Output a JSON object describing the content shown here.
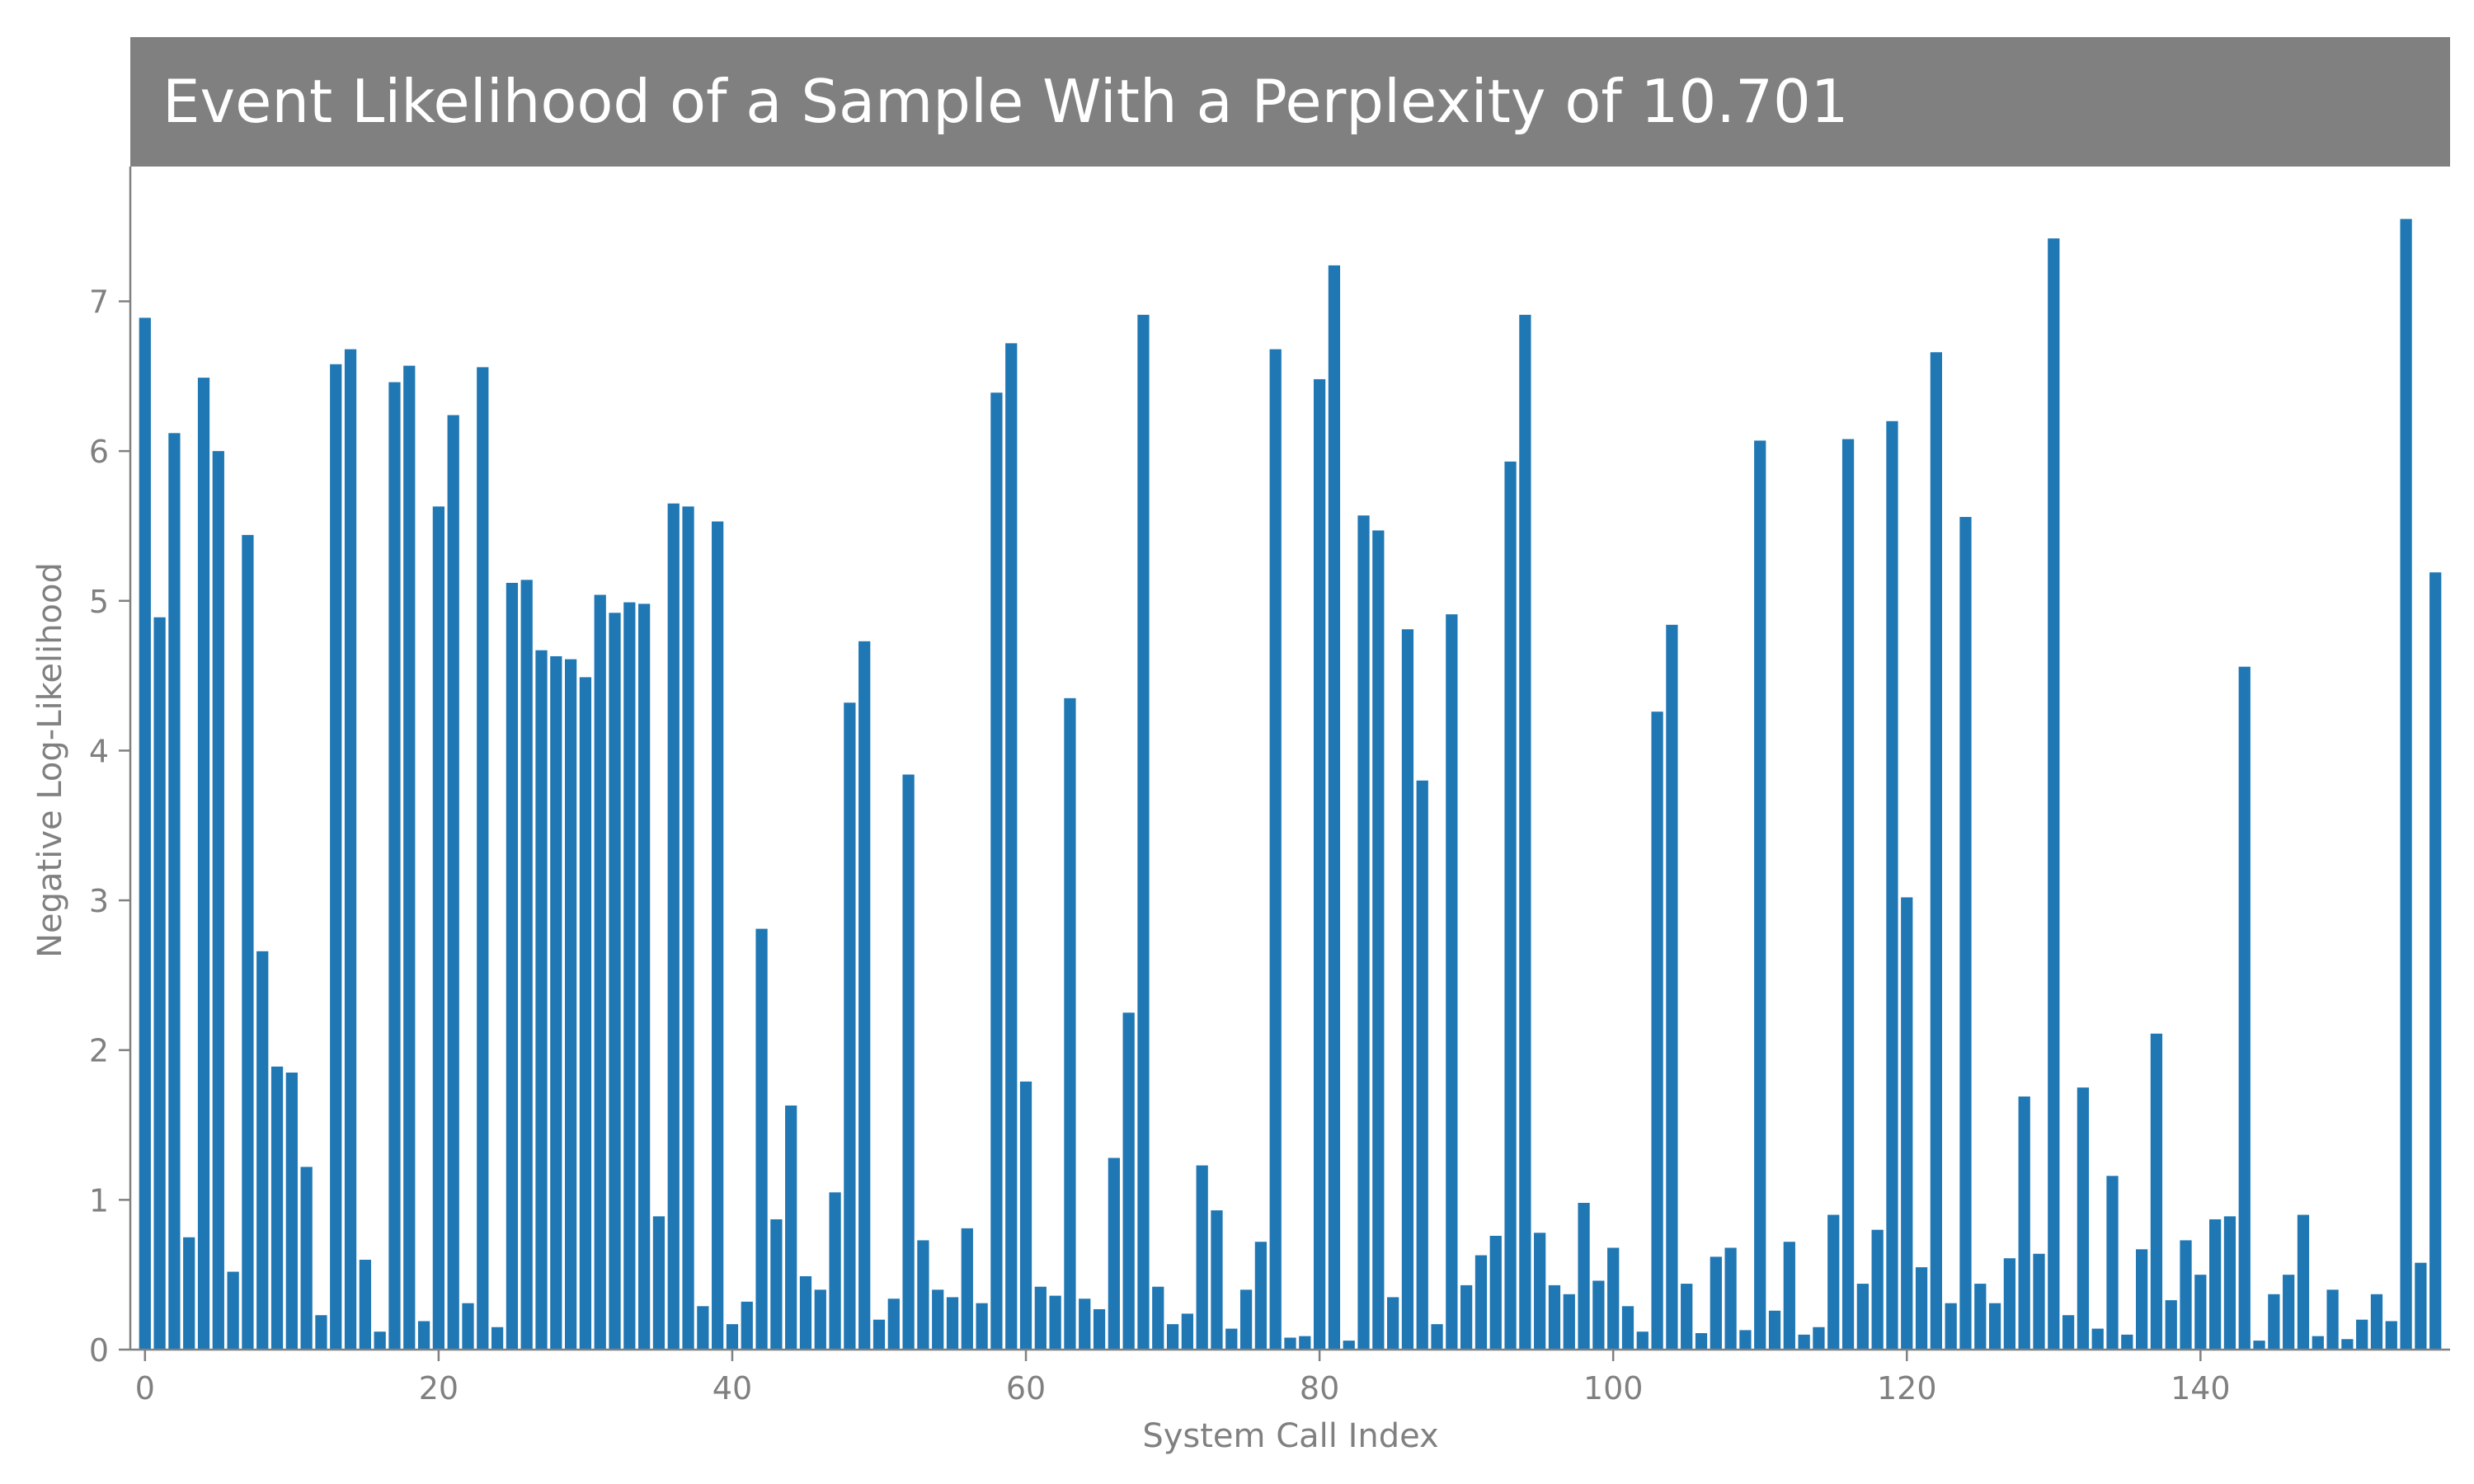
{
  "chart_data": {
    "type": "bar",
    "title": "Event Likelihood of a Sample With a Perplexity of 10.701",
    "xlabel": "System Call Index",
    "ylabel": "Negative Log-Likelihood",
    "xlim": [
      -1,
      157
    ],
    "ylim": [
      0,
      7.9
    ],
    "xticks": [
      0,
      20,
      40,
      60,
      80,
      100,
      120,
      140
    ],
    "yticks": [
      0,
      1,
      2,
      3,
      4,
      5,
      6,
      7
    ],
    "grid": false,
    "color": "#1f77b4",
    "x": [
      0,
      1,
      2,
      3,
      4,
      5,
      6,
      7,
      8,
      9,
      10,
      11,
      12,
      13,
      14,
      15,
      16,
      17,
      18,
      19,
      20,
      21,
      22,
      23,
      24,
      25,
      26,
      27,
      28,
      29,
      30,
      31,
      32,
      33,
      34,
      35,
      36,
      37,
      38,
      39,
      40,
      41,
      42,
      43,
      44,
      45,
      46,
      47,
      48,
      49,
      50,
      51,
      52,
      53,
      54,
      55,
      56,
      57,
      58,
      59,
      60,
      61,
      62,
      63,
      64,
      65,
      66,
      67,
      68,
      69,
      70,
      71,
      72,
      73,
      74,
      75,
      76,
      77,
      78,
      79,
      80,
      81,
      82,
      83,
      84,
      85,
      86,
      87,
      88,
      89,
      90,
      91,
      92,
      93,
      94,
      95,
      96,
      97,
      98,
      99,
      100,
      101,
      102,
      103,
      104,
      105,
      106,
      107,
      108,
      109,
      110,
      111,
      112,
      113,
      114,
      115,
      116,
      117,
      118,
      119,
      120,
      121,
      122,
      123,
      124,
      125,
      126,
      127,
      128,
      129,
      130,
      131,
      132,
      133,
      134,
      135,
      136,
      137,
      138,
      139,
      140,
      141,
      142,
      143,
      144,
      145,
      146,
      147,
      148,
      149,
      150,
      151,
      152,
      153,
      154,
      155,
      156
    ],
    "values": [
      6.89,
      4.89,
      6.12,
      0.75,
      6.49,
      6.0,
      0.52,
      5.44,
      2.66,
      1.89,
      1.85,
      1.22,
      0.23,
      6.58,
      6.68,
      0.6,
      0.12,
      6.46,
      6.57,
      0.19,
      5.63,
      6.24,
      0.31,
      6.56,
      0.15,
      5.12,
      5.14,
      4.67,
      4.63,
      4.61,
      4.49,
      5.04,
      4.92,
      4.99,
      4.98,
      0.89,
      5.65,
      5.63,
      0.29,
      5.53,
      0.17,
      0.32,
      2.81,
      0.87,
      1.63,
      0.49,
      0.4,
      1.05,
      4.32,
      4.73,
      0.2,
      0.34,
      3.84,
      0.73,
      0.4,
      0.35,
      0.81,
      0.31,
      6.39,
      6.72,
      1.79,
      0.42,
      0.36,
      4.35,
      0.34,
      0.27,
      1.28,
      2.25,
      6.91,
      0.42,
      0.17,
      0.24,
      1.23,
      0.93,
      0.14,
      0.4,
      0.72,
      6.68,
      0.08,
      0.09,
      6.48,
      7.24,
      0.06,
      5.57,
      5.47,
      0.35,
      4.81,
      3.8,
      0.17,
      4.91,
      0.43,
      0.63,
      0.76,
      5.93,
      6.91,
      0.78,
      0.43,
      0.37,
      0.98,
      0.46,
      0.68,
      0.29,
      0.12,
      4.26,
      4.84,
      0.44,
      0.11,
      0.62,
      0.68,
      0.13,
      6.07,
      0.26,
      0.72,
      0.1,
      0.15,
      0.9,
      6.08,
      0.44,
      0.8,
      6.2,
      3.02,
      0.55,
      6.66,
      0.31,
      5.56,
      0.44,
      0.31,
      0.61,
      1.69,
      0.64,
      7.42,
      0.23,
      1.75,
      0.14,
      1.16,
      0.1,
      0.67,
      2.11,
      0.33,
      0.73,
      0.5,
      0.87,
      0.89,
      4.56,
      0.06,
      0.37,
      0.5,
      0.9,
      0.09,
      0.4,
      0.07,
      0.2,
      0.37,
      0.19,
      7.55,
      0.58,
      5.19
    ]
  }
}
